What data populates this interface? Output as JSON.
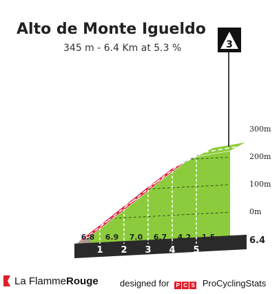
{
  "header": {
    "title": "Alto de Monte Igueldo",
    "subtitle": "345 m - 6.4 Km at 5.3 %",
    "category_badge": "3"
  },
  "footer": {
    "brand_light": "La Flamme",
    "brand_bold": "Rouge",
    "designed_for": "designed for",
    "pcs_letters": [
      "P",
      "C",
      "S"
    ],
    "pcs_name": "ProCyclingStats"
  },
  "colors": {
    "green": "#8ccc3c",
    "green_dark": "#5a8a1e",
    "red": "#e02040",
    "red_dark": "#9b1630",
    "blue": "#1f5c8a",
    "base": "#2a2a2a",
    "start_grey": "#a89a8a"
  },
  "chart_data": {
    "type": "area",
    "total_km": 6.4,
    "distance_label": "6.4",
    "km_markers": [
      "1",
      "2",
      "3",
      "4",
      "5"
    ],
    "segment_gradients": [
      {
        "from_km": 0,
        "to_km": 1,
        "gradient": 6.8,
        "label": "6.8",
        "color": "red"
      },
      {
        "from_km": 1,
        "to_km": 2,
        "gradient": 6.9,
        "label": "6.9",
        "color": "red"
      },
      {
        "from_km": 2,
        "to_km": 3,
        "gradient": 7.0,
        "label": "7.0",
        "color": "red"
      },
      {
        "from_km": 3,
        "to_km": 4,
        "gradient": 6.7,
        "label": "6.7",
        "color": "red"
      },
      {
        "from_km": 4,
        "to_km": 5,
        "gradient": 4.2,
        "label": "4.2",
        "color": "blue"
      },
      {
        "from_km": 5,
        "to_km": 6.4,
        "gradient": 1.5,
        "label": "1.5",
        "color": "green"
      }
    ],
    "y_ticks": [
      {
        "value": 0,
        "label": "0m"
      },
      {
        "value": 100,
        "label": "100m"
      },
      {
        "value": 200,
        "label": "200m"
      },
      {
        "value": 300,
        "label": "300m"
      }
    ],
    "ylim": [
      -85,
      345
    ]
  }
}
